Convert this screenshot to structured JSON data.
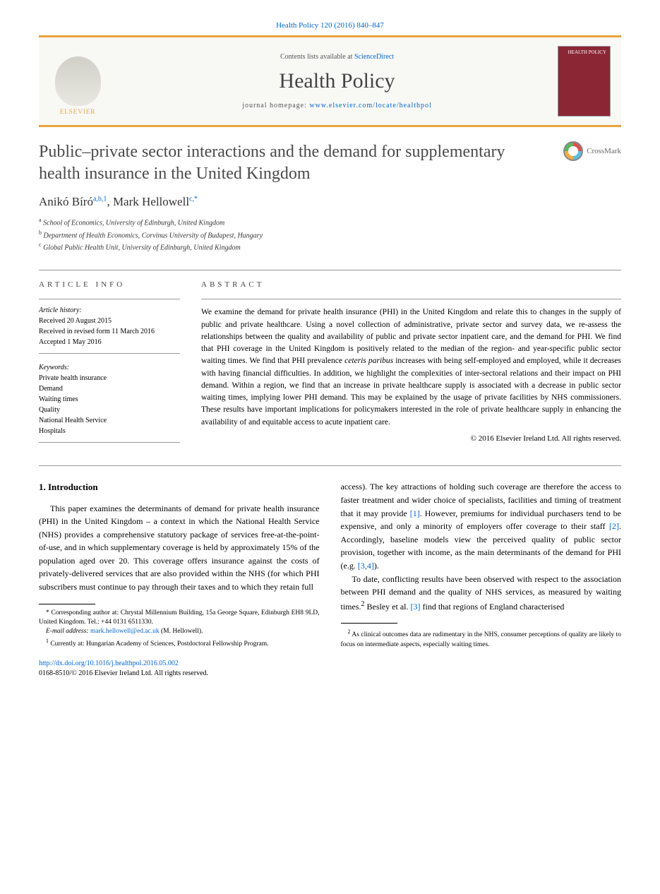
{
  "citation": "Health Policy 120 (2016) 840–847",
  "header": {
    "contents_prefix": "Contents lists available at ",
    "contents_link": "ScienceDirect",
    "journal": "Health Policy",
    "homepage_prefix": "journal homepage: ",
    "homepage_url": "www.elsevier.com/locate/healthpol",
    "publisher": "ELSEVIER",
    "cover_label": "HEALTH POLICY"
  },
  "title": "Public–private sector interactions and the demand for supplementary health insurance in the United Kingdom",
  "crossmark": "CrossMark",
  "authors_html": "Anikó Bíró",
  "author1_sup": "a,b,1",
  "author2": ", Mark Hellowell",
  "author2_sup": "c,*",
  "affiliations": {
    "a": "School of Economics, University of Edinburgh, United Kingdom",
    "b": "Department of Health Economics, Corvinus University of Budapest, Hungary",
    "c": "Global Public Health Unit, University of Edinburgh, United Kingdom"
  },
  "info": {
    "section": "ARTICLE INFO",
    "history_label": "Article history:",
    "received": "Received 20 August 2015",
    "revised": "Received in revised form 11 March 2016",
    "accepted": "Accepted 1 May 2016",
    "keywords_label": "Keywords:",
    "keywords": [
      "Private health insurance",
      "Demand",
      "Waiting times",
      "Quality",
      "National Health Service",
      "Hospitals"
    ]
  },
  "abstract": {
    "label": "ABSTRACT",
    "text_1": "We examine the demand for private health insurance (PHI) in the United Kingdom and relate this to changes in the supply of public and private healthcare. Using a novel collection of administrative, private sector and survey data, we re-assess the relationships between the quality and availability of public and private sector inpatient care, and the demand for PHI. We find that PHI coverage in the United Kingdom is positively related to the median of the region- and year-specific public sector waiting times. We find that PHI prevalence ",
    "text_italic": "ceteris paribus",
    "text_2": " increases with being self-employed and employed, while it decreases with having financial difficulties. In addition, we highlight the complexities of inter-sectoral relations and their impact on PHI demand. Within a region, we find that an increase in private healthcare supply is associated with a decrease in public sector waiting times, implying lower PHI demand. This may be explained by the usage of private facilities by NHS commissioners. These results have important implications for policymakers interested in the role of private healthcare supply in enhancing the availability of and equitable access to acute inpatient care.",
    "copyright": "© 2016 Elsevier Ireland Ltd. All rights reserved."
  },
  "body": {
    "heading": "1.  Introduction",
    "col1_p1": "This paper examines the determinants of demand for private health insurance (PHI) in the United Kingdom – a context in which the National Health Service (NHS) provides a comprehensive statutory package of services free-at-the-point-of-use, and in which supplementary coverage is held by approximately 15% of the population aged over 20. This coverage offers insurance against the costs of privately-delivered services that are also provided within the NHS (for which PHI subscribers must continue to pay through their taxes and to which they retain full",
    "col2_p1_a": "access). The key attractions of holding such coverage are therefore the access to faster treatment and wider choice of specialists, facilities and timing of treatment that it may provide ",
    "ref1": "[1]",
    "col2_p1_b": ". However, premiums for individual purchasers tend to be expensive, and only a minority of employers offer coverage to their staff ",
    "ref2": "[2]",
    "col2_p1_c": ". Accordingly, baseline models view the perceived quality of public sector provision, together with income, as the main determinants of the demand for PHI (e.g. ",
    "ref34": "[3,4]",
    "col2_p1_d": ").",
    "col2_p2_a": "To date, conflicting results have been observed with respect to the association between PHI demand and the quality of NHS services, as measured by waiting times.",
    "sup2": "2",
    "col2_p2_b": " Besley et al. ",
    "ref3": "[3]",
    "col2_p2_c": " find that regions of England characterised"
  },
  "footnotes": {
    "corr_a": "* Corresponding author at: Chrystal Millennium Building, 15a George Square, Edinburgh EH8 9LD, United Kingdom. Tel.: +44 0131 6511330.",
    "email_label": "E-mail address:",
    "email": "mark.hellowell@ed.ac.uk",
    "email_suffix": " (M. Hellowell).",
    "note1": "Currently at: Hungarian Academy of Sciences, Postdoctoral Fellowship Program.",
    "note1_sup": "1",
    "note2": "As clinical outcomes data are rudimentary in the NHS, consumer perceptions of quality are likely to focus on intermediate aspects, especially waiting times.",
    "note2_sup": "2"
  },
  "doi": {
    "url": "http://dx.doi.org/10.1016/j.healthpol.2016.05.002",
    "issn_line": "0168-8510/© 2016 Elsevier Ireland Ltd. All rights reserved."
  },
  "colors": {
    "accent_orange": "#e8a33d",
    "link_blue": "#0066cc",
    "cover_bg": "#8b2635"
  }
}
